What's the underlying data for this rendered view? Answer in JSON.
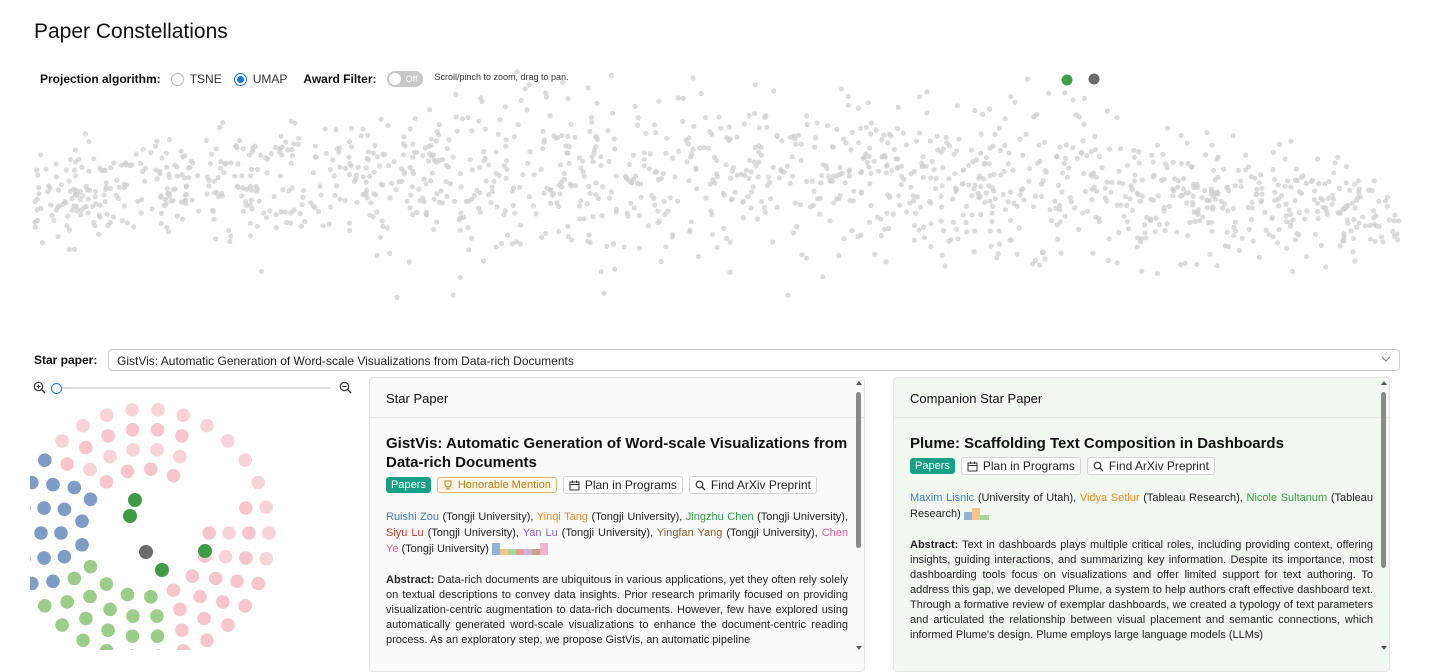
{
  "title": "Paper Constellations",
  "controls": {
    "projection_label": "Projection algorithm:",
    "options": [
      "TSNE",
      "UMAP"
    ],
    "selected": "UMAP",
    "award_label": "Award Filter:",
    "award_state": "Off",
    "hint": "Scroll/pinch to zoom, drag to pan."
  },
  "colors": {
    "accent": "#1a73e8",
    "papers_tag": "#16a085",
    "highlight_green": "#43a047",
    "highlight_gray": "#6b6b6b",
    "scatter_dot": "#cfcfcf",
    "mini_blue": "#7f9cc6",
    "mini_green": "#9ccc8a",
    "mini_pink": "#f6c6cc",
    "mini_darkgreen": "#3f9c45"
  },
  "star": {
    "label": "Star paper:",
    "selected": "GistVis: Automatic Generation of Word-scale Visualizations from Data-rich Documents"
  },
  "icons": {
    "zoom_in": "zoom-in-icon",
    "zoom_out": "zoom-out-icon",
    "calendar": "calendar-icon",
    "search": "search-icon",
    "trophy": "trophy-icon",
    "chevron": "chevron-down-icon"
  },
  "star_panel": {
    "header": "Star Paper",
    "title": "GistVis: Automatic Generation of Word-scale Visualizations from Data-rich Documents",
    "tag_papers": "Papers",
    "tag_award": "Honorable Mention",
    "btn_plan": "Plan in Programs",
    "btn_arxiv": "Find ArXiv Preprint",
    "authors": [
      {
        "name": "Ruishi Zou",
        "aff": "(Tongji University)"
      },
      {
        "name": "Yinqi Tang",
        "aff": "(Tongji University)"
      },
      {
        "name": "Jingzhu Chen",
        "aff": "(Tongji University)"
      },
      {
        "name": "Siyu Lu",
        "aff": "(Tongji University)"
      },
      {
        "name": "Yan Lu",
        "aff": "(Tongji University)"
      },
      {
        "name": "Yingfan Yang",
        "aff": "(Tongji University)"
      },
      {
        "name": "Chen Ye",
        "aff": "(Tongji University)"
      }
    ],
    "abstract_label": "Abstract:",
    "abstract": "Data-rich documents are ubiquitous in various applications, yet they often rely solely on textual descriptions to convey data insights. Prior research primarily focused on providing visualization-centric augmentation to data-rich documents. However, few have explored using automatically generated word-scale visualizations to enhance the document-centric reading process. As an exploratory step, we propose GistVis, an automatic pipeline"
  },
  "comp_panel": {
    "header": "Companion Star Paper",
    "title": "Plume: Scaffolding Text Composition in Dashboards",
    "tag_papers": "Papers",
    "btn_plan": "Plan in Programs",
    "btn_arxiv": "Find ArXiv Preprint",
    "authors": [
      {
        "name": "Maxim Lisnic",
        "aff": "(University of Utah),"
      },
      {
        "name": "Vidya Setlur",
        "aff": "(Tableau Research),"
      },
      {
        "name": "Nicole Sultanum",
        "aff": "(Tableau Research)"
      }
    ],
    "abstract_label": "Abstract:",
    "abstract": "Text in dashboards plays multiple critical roles, including providing context, offering insights, guiding interactions, and summarizing key information. Despite its importance, most dashboarding tools focus on visualizations and offer limited support for text authoring. To address this gap, we developed Plume, a system to help authors craft effective dashboard text. Through a formative review of exemplar dashboards, we created a typology of text parameters and articulated the relationship between visual placement and semantic connections, which informed Plume's design. Plume employs large language models (LLMs)"
  }
}
